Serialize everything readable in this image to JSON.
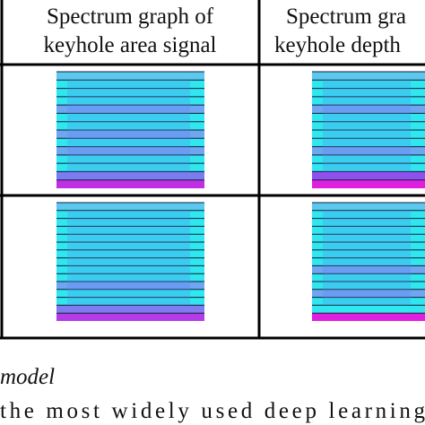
{
  "table": {
    "header": [
      {
        "line1": "Spectrum graph of",
        "line2": "keyhole area signal"
      },
      {
        "line1": "Spectrum gra",
        "line2": "keyhole depth"
      }
    ]
  },
  "body": {
    "heading": "model",
    "text": "the most widely used deep learning"
  }
}
